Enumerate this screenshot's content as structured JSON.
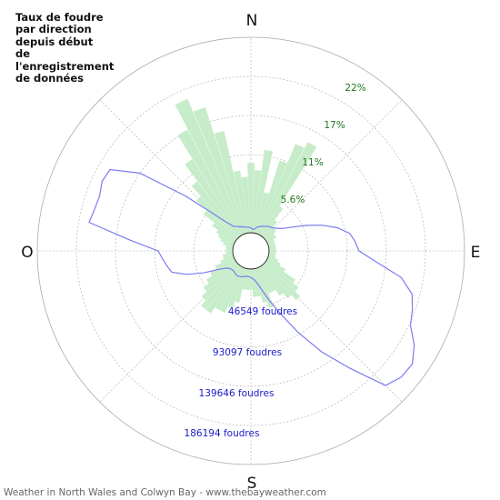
{
  "title": "Taux de foudre\npar direction\ndepuis début\nde\nl'enregistrement\nde données",
  "footer": "Weather in North Wales and Colwyn Bay - www.thebayweather.com",
  "colors": {
    "rate_fill": "#c6ecc9",
    "count_line": "#7b7bf0",
    "pct_text": "#227722",
    "count_text": "#1a1acc",
    "grid": "#aaaaaa"
  },
  "chart_data": {
    "type": "polar-rose",
    "title": "Taux de foudre par direction depuis début de l'enregistrement de données",
    "cardinals": {
      "n": "N",
      "e": "E",
      "s": "S",
      "w": "O"
    },
    "percent_ticks": [
      "5.6%",
      "11%",
      "17%",
      "22%"
    ],
    "count_ticks": [
      "46549 foudres",
      "93097 foudres",
      "139646 foudres",
      "186194 foudres"
    ],
    "grid": true,
    "series": [
      {
        "kind": "rate-bars",
        "unit": "%",
        "rmax": 28,
        "directions_deg": [
          0,
          5,
          10,
          15,
          20,
          25,
          30,
          35,
          40,
          45,
          50,
          55,
          60,
          65,
          70,
          75,
          80,
          85,
          90,
          95,
          100,
          105,
          110,
          115,
          120,
          125,
          130,
          135,
          140,
          145,
          150,
          155,
          160,
          165,
          170,
          175,
          180,
          185,
          190,
          195,
          200,
          205,
          210,
          215,
          220,
          225,
          230,
          235,
          240,
          245,
          250,
          255,
          260,
          265,
          270,
          275,
          280,
          285,
          290,
          295,
          300,
          305,
          310,
          315,
          320,
          325,
          330,
          335,
          340,
          345,
          350,
          355
        ],
        "values": [
          10,
          9,
          12,
          6,
          11,
          14,
          15,
          5,
          3,
          2,
          2,
          1.5,
          1.5,
          1,
          1,
          1,
          1,
          1,
          1,
          1,
          1,
          1,
          1.5,
          2,
          3,
          5,
          6,
          7,
          6,
          5,
          4,
          4,
          6,
          5,
          4,
          4,
          3,
          3,
          3,
          5,
          6,
          7,
          7,
          8,
          8,
          7,
          6,
          5,
          4,
          3,
          2,
          1.5,
          1.5,
          1,
          1,
          1,
          1,
          1.5,
          2,
          2.5,
          3,
          4,
          6,
          8,
          10,
          13,
          17,
          21,
          19,
          15,
          9,
          8
        ]
      },
      {
        "kind": "count-line",
        "unit": "foudres",
        "rmax": 232742,
        "directions_deg": [
          0,
          5,
          10,
          15,
          20,
          25,
          30,
          35,
          40,
          45,
          50,
          55,
          60,
          65,
          70,
          75,
          80,
          85,
          90,
          95,
          100,
          105,
          110,
          115,
          120,
          125,
          130,
          135,
          140,
          145,
          150,
          155,
          160,
          165,
          170,
          175,
          180,
          185,
          190,
          195,
          200,
          205,
          210,
          215,
          220,
          225,
          230,
          235,
          240,
          245,
          250,
          255,
          260,
          265,
          270,
          275,
          280,
          285,
          290,
          295,
          300,
          305,
          310,
          315,
          320,
          325,
          330,
          335,
          340,
          345,
          350,
          355
        ],
        "values": [
          6000,
          4000,
          5000,
          8000,
          9000,
          11000,
          12000,
          14000,
          15000,
          17000,
          20000,
          25000,
          35000,
          50000,
          68000,
          85000,
          98000,
          103000,
          107000,
          128000,
          160000,
          177000,
          183000,
          188000,
          203000,
          213000,
          212000,
          205000,
          160000,
          125000,
          90000,
          60000,
          40000,
          25000,
          16000,
          12000,
          10000,
          9000,
          9000,
          10000,
          11000,
          12000,
          12000,
          11000,
          10000,
          10000,
          11000,
          14000,
          22000,
          40000,
          60000,
          76000,
          80000,
          84000,
          89000,
          122000,
          174000,
          171000,
          170000,
          174000,
          172000,
          140000,
          80000,
          40000,
          22000,
          14000,
          12000,
          10000,
          9000,
          8000,
          7000,
          6500
        ]
      }
    ]
  }
}
